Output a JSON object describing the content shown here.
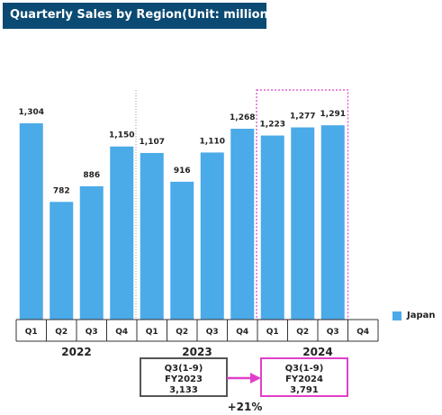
{
  "title": "Quarterly Sales by Region(Unit: million yen)",
  "colors": {
    "bar": "#4baae8",
    "title_bg": "#0b4a73",
    "highlight": "#e040c8",
    "arrow": "#e040c8",
    "box_border_prev": "#555555"
  },
  "chart_data": {
    "type": "bar",
    "title": "Quarterly Sales by Region(Unit: million yen)",
    "quarters": [
      "Q1",
      "Q2",
      "Q3",
      "Q4",
      "Q1",
      "Q2",
      "Q3",
      "Q4",
      "Q1",
      "Q2",
      "Q3",
      "Q4"
    ],
    "years": [
      "2022",
      "2023",
      "2024"
    ],
    "series": [
      {
        "name": "Japan",
        "values": [
          1304,
          782,
          886,
          1150,
          1107,
          916,
          1110,
          1268,
          1223,
          1277,
          1291,
          null
        ],
        "labels": [
          "1,304",
          "782",
          "886",
          "1,150",
          "1,107",
          "916",
          "1,110",
          "1,268",
          "1,223",
          "1,277",
          "1,291",
          ""
        ]
      }
    ],
    "ylim": [
      0,
      1400
    ],
    "grid": false,
    "legend_position": "right"
  },
  "legend": {
    "label": "Japan"
  },
  "comparison": {
    "prev": {
      "line1": "Q3(1-9)",
      "line2": "FY2023",
      "line3": "3,133"
    },
    "curr": {
      "line1": "Q3(1-9)",
      "line2": "FY2024",
      "line3": "3,791"
    },
    "growth": "+21%"
  }
}
